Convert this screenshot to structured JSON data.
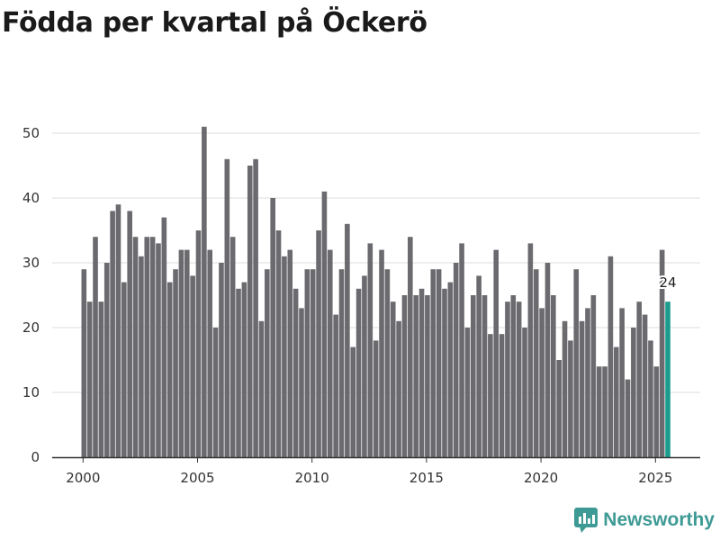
{
  "header": {
    "title": "Födda per kvartal på Öckerö"
  },
  "brand": {
    "name": "Newsworthy",
    "color": "#3e9a95"
  },
  "colors": {
    "bar": "#6b6a6e",
    "highlight": "#1c9b8f",
    "grid": "#dddddd",
    "axis": "#333333"
  },
  "chart_data": {
    "type": "bar",
    "title": "Födda per kvartal på Öckerö",
    "xlabel": "",
    "ylabel": "",
    "ylim": [
      0,
      55
    ],
    "yticks": [
      0,
      10,
      20,
      30,
      40,
      50
    ],
    "xticks": [
      "2000",
      "2005",
      "2010",
      "2015",
      "2020",
      "2025"
    ],
    "grid": true,
    "categories": [
      "2000 Q1",
      "2000 Q2",
      "2000 Q3",
      "2000 Q4",
      "2001 Q1",
      "2001 Q2",
      "2001 Q3",
      "2001 Q4",
      "2002 Q1",
      "2002 Q2",
      "2002 Q3",
      "2002 Q4",
      "2003 Q1",
      "2003 Q2",
      "2003 Q3",
      "2003 Q4",
      "2004 Q1",
      "2004 Q2",
      "2004 Q3",
      "2004 Q4",
      "2005 Q1",
      "2005 Q2",
      "2005 Q3",
      "2005 Q4",
      "2006 Q1",
      "2006 Q2",
      "2006 Q3",
      "2006 Q4",
      "2007 Q1",
      "2007 Q2",
      "2007 Q3",
      "2007 Q4",
      "2008 Q1",
      "2008 Q2",
      "2008 Q3",
      "2008 Q4",
      "2009 Q1",
      "2009 Q2",
      "2009 Q3",
      "2009 Q4",
      "2010 Q1",
      "2010 Q2",
      "2010 Q3",
      "2010 Q4",
      "2011 Q1",
      "2011 Q2",
      "2011 Q3",
      "2011 Q4",
      "2012 Q1",
      "2012 Q2",
      "2012 Q3",
      "2012 Q4",
      "2013 Q1",
      "2013 Q2",
      "2013 Q3",
      "2013 Q4",
      "2014 Q1",
      "2014 Q2",
      "2014 Q3",
      "2014 Q4",
      "2015 Q1",
      "2015 Q2",
      "2015 Q3",
      "2015 Q4",
      "2016 Q1",
      "2016 Q2",
      "2016 Q3",
      "2016 Q4",
      "2017 Q1",
      "2017 Q2",
      "2017 Q3",
      "2017 Q4",
      "2018 Q1",
      "2018 Q2",
      "2018 Q3",
      "2018 Q4",
      "2019 Q1",
      "2019 Q2",
      "2019 Q3",
      "2019 Q4",
      "2020 Q1",
      "2020 Q2",
      "2020 Q3",
      "2020 Q4",
      "2021 Q1",
      "2021 Q2",
      "2021 Q3",
      "2021 Q4",
      "2022 Q1",
      "2022 Q2",
      "2022 Q3",
      "2022 Q4",
      "2023 Q1",
      "2023 Q2",
      "2023 Q3",
      "2023 Q4",
      "2024 Q1",
      "2024 Q2",
      "2024 Q3",
      "2024 Q4",
      "2025 Q1",
      "2025 Q2",
      "2025 Q3"
    ],
    "values": [
      29,
      24,
      34,
      24,
      30,
      38,
      39,
      27,
      38,
      34,
      31,
      34,
      34,
      33,
      37,
      27,
      29,
      32,
      32,
      28,
      35,
      51,
      32,
      20,
      30,
      46,
      34,
      26,
      27,
      45,
      46,
      21,
      29,
      40,
      35,
      31,
      32,
      26,
      23,
      29,
      29,
      35,
      41,
      32,
      22,
      29,
      36,
      17,
      26,
      28,
      33,
      18,
      32,
      29,
      24,
      21,
      25,
      34,
      25,
      26,
      25,
      29,
      29,
      26,
      27,
      30,
      33,
      20,
      25,
      28,
      25,
      19,
      32,
      19,
      24,
      25,
      24,
      20,
      33,
      29,
      23,
      30,
      25,
      15,
      21,
      18,
      29,
      21,
      23,
      25,
      14,
      14,
      31,
      17,
      23,
      12,
      20,
      24,
      22,
      18,
      14,
      32,
      24
    ],
    "highlight_index": 102,
    "highlight_label": "24"
  }
}
